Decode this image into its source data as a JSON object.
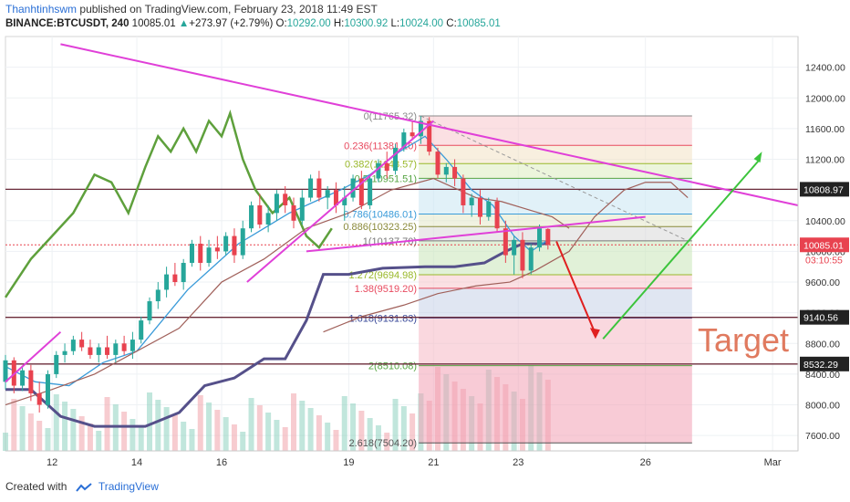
{
  "header": {
    "author": "Thanhtinhswm",
    "published": "published on TradingView.com, February 23, 2018 11:49 EST",
    "symbol": "BINANCE:BTCUSDT, 240",
    "last": "10085.01",
    "change_arrow": "▲",
    "change": "+273.97 (+2.79%)",
    "o_label": "O:",
    "o_value": "10292.00",
    "h_label": "H:",
    "h_value": "10300.92",
    "l_label": "L:",
    "l_value": "10024.00",
    "c_label": "C:",
    "c_value": "10085.01"
  },
  "footer": {
    "created_with": "Created with",
    "brand": "TradingView"
  },
  "chart_data": {
    "type": "candlestick",
    "title": "",
    "ylim": [
      7400,
      12800
    ],
    "y_ticks": [
      "7600.00",
      "8000.00",
      "8400.00",
      "8800.00",
      "9200.00",
      "9600.00",
      "10000.00",
      "10400.00",
      "10800.00",
      "11200.00",
      "11600.00",
      "12000.00",
      "12400.00"
    ],
    "x_ticks": [
      {
        "label": "12",
        "day": 12
      },
      {
        "label": "14",
        "day": 14
      },
      {
        "label": "16",
        "day": 16
      },
      {
        "label": "19",
        "day": 19
      },
      {
        "label": "21",
        "day": 21
      },
      {
        "label": "23",
        "day": 23
      },
      {
        "label": "26",
        "day": 26
      },
      {
        "label": "Mar",
        "day": 29
      }
    ],
    "price_tags": [
      {
        "value": 10808.97,
        "label": "10808.97",
        "color": "#222222"
      },
      {
        "value": 10085.01,
        "label": "10085.01",
        "color": "#e8424f"
      },
      {
        "value": 9140.56,
        "label": "9140.56",
        "color": "#222222"
      },
      {
        "value": 8532.29,
        "label": "8532.29",
        "color": "#222222"
      }
    ],
    "countdown": "03:10:55",
    "fib_levels": [
      {
        "label": "0(11765.32)",
        "value": 11765.32,
        "color": "#888888"
      },
      {
        "label": "0.236(11381.20)",
        "value": 11381.2,
        "color": "#e84a5f"
      },
      {
        "label": "0.382(11143.57)",
        "value": 11143.57,
        "color": "#9ab82a"
      },
      {
        "label": "0.5(10951.51)",
        "value": 10951.51,
        "color": "#57a544"
      },
      {
        "label": "0.786(10486.01)",
        "value": 10486.01,
        "color": "#3a9bd9"
      },
      {
        "label": "0.886(10323.25)",
        "value": 10323.25,
        "color": "#8a8a3a"
      },
      {
        "label": "1(10137.70)",
        "value": 10137.7,
        "color": "#777777"
      },
      {
        "label": "1.272(9694.98)",
        "value": 9694.98,
        "color": "#9ab82a"
      },
      {
        "label": "1.38(9519.20)",
        "value": 9519.2,
        "color": "#e84a5f"
      },
      {
        "label": "1.618(9131.83)",
        "value": 9131.83,
        "color": "#3a4a9a"
      },
      {
        "label": "2(8510.08)",
        "value": 8510.08,
        "color": "#57a544"
      },
      {
        "label": "2.618(7504.20)",
        "value": 7504.2,
        "color": "#555555"
      }
    ],
    "annotation": "Target",
    "candles": [
      [
        10.9,
        8300,
        8650,
        8200,
        8580
      ],
      [
        11.1,
        8580,
        8620,
        8150,
        8250
      ],
      [
        11.3,
        8250,
        8500,
        8180,
        8450
      ],
      [
        11.5,
        8450,
        8520,
        8050,
        8150
      ],
      [
        11.7,
        8150,
        8300,
        7900,
        8000
      ],
      [
        11.9,
        8000,
        8450,
        7950,
        8400
      ],
      [
        12.1,
        8400,
        8700,
        8350,
        8650
      ],
      [
        12.3,
        8650,
        8800,
        8550,
        8700
      ],
      [
        12.5,
        8700,
        8900,
        8650,
        8850
      ],
      [
        12.7,
        8850,
        8950,
        8700,
        8750
      ],
      [
        12.9,
        8750,
        8850,
        8600,
        8650
      ],
      [
        13.1,
        8650,
        8800,
        8550,
        8750
      ],
      [
        13.3,
        8750,
        8900,
        8600,
        8650
      ],
      [
        13.5,
        8650,
        8850,
        8550,
        8800
      ],
      [
        13.7,
        8800,
        8900,
        8650,
        8700
      ],
      [
        13.9,
        8700,
        8950,
        8600,
        8850
      ],
      [
        14.1,
        8850,
        9150,
        8800,
        9100
      ],
      [
        14.3,
        9100,
        9400,
        9050,
        9350
      ],
      [
        14.5,
        9350,
        9600,
        9250,
        9500
      ],
      [
        14.7,
        9500,
        9800,
        9400,
        9700
      ],
      [
        14.9,
        9700,
        9850,
        9550,
        9600
      ],
      [
        15.1,
        9600,
        9900,
        9500,
        9850
      ],
      [
        15.3,
        9850,
        10150,
        9800,
        10100
      ],
      [
        15.5,
        10100,
        10200,
        9750,
        9850
      ],
      [
        15.7,
        9850,
        10150,
        9800,
        10050
      ],
      [
        15.9,
        10050,
        10200,
        9900,
        10000
      ],
      [
        16.1,
        10000,
        10250,
        9950,
        10200
      ],
      [
        16.3,
        10200,
        10300,
        9850,
        9950
      ],
      [
        16.5,
        9950,
        10400,
        9900,
        10300
      ],
      [
        16.7,
        10300,
        10650,
        10250,
        10600
      ],
      [
        16.9,
        10600,
        10750,
        10300,
        10350
      ],
      [
        17.1,
        10350,
        10600,
        10250,
        10500
      ],
      [
        17.3,
        10500,
        10800,
        10400,
        10750
      ],
      [
        17.5,
        10750,
        10850,
        10500,
        10600
      ],
      [
        17.7,
        10600,
        10700,
        10300,
        10400
      ],
      [
        17.9,
        10400,
        10800,
        10350,
        10700
      ],
      [
        18.1,
        10700,
        11000,
        10650,
        10950
      ],
      [
        18.3,
        10950,
        11050,
        10650,
        10700
      ],
      [
        18.5,
        10700,
        10850,
        10550,
        10800
      ],
      [
        18.7,
        10800,
        10900,
        10500,
        10600
      ],
      [
        18.9,
        10600,
        10850,
        10400,
        10700
      ],
      [
        19.1,
        10700,
        11000,
        10650,
        10950
      ],
      [
        19.3,
        10950,
        11050,
        10550,
        10600
      ],
      [
        19.5,
        10600,
        11000,
        10550,
        10950
      ],
      [
        19.7,
        10950,
        11200,
        10900,
        11150
      ],
      [
        19.9,
        11150,
        11300,
        10950,
        11050
      ],
      [
        20.1,
        11050,
        11400,
        11000,
        11350
      ],
      [
        20.3,
        11350,
        11600,
        11300,
        11550
      ],
      [
        20.5,
        11550,
        11700,
        11450,
        11500
      ],
      [
        20.7,
        11500,
        11765,
        11400,
        11700
      ],
      [
        20.9,
        11700,
        11750,
        11250,
        11300
      ],
      [
        21.1,
        11300,
        11350,
        10950,
        11000
      ],
      [
        21.3,
        11000,
        11150,
        10900,
        11100
      ],
      [
        21.5,
        11100,
        11200,
        10850,
        10950
      ],
      [
        21.7,
        10950,
        11000,
        10500,
        10600
      ],
      [
        21.9,
        10600,
        10750,
        10450,
        10700
      ],
      [
        22.1,
        10700,
        10800,
        10350,
        10450
      ],
      [
        22.3,
        10450,
        10700,
        10400,
        10650
      ],
      [
        22.5,
        10650,
        10700,
        10250,
        10300
      ],
      [
        22.7,
        10300,
        10400,
        9850,
        9950
      ],
      [
        22.9,
        9950,
        10200,
        9700,
        10150
      ],
      [
        23.1,
        10150,
        10250,
        9650,
        9750
      ],
      [
        23.3,
        9750,
        10100,
        9700,
        10050
      ],
      [
        23.5,
        10050,
        10350,
        10000,
        10300
      ],
      [
        23.7,
        10292,
        10300.92,
        10024,
        10085.01
      ]
    ]
  }
}
